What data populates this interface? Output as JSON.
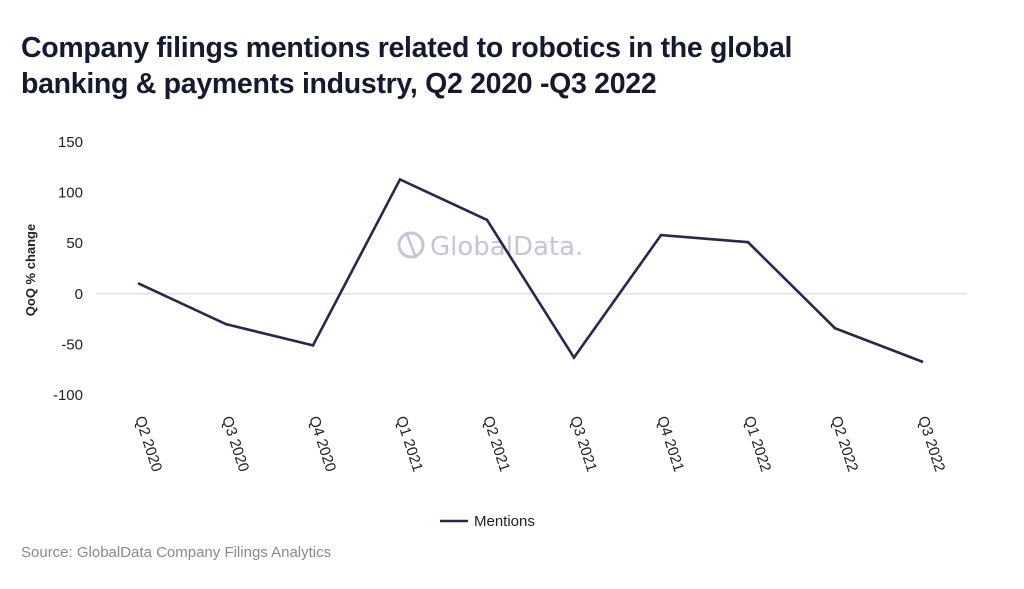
{
  "header": {
    "title": "Company filings mentions related to robotics in the global banking & payments industry, Q2 2020 -Q3 2022"
  },
  "footer": {
    "source": "Source: GlobalData Company Filings Analytics"
  },
  "watermark": {
    "text": "GlobalData.",
    "icon": "globaldata-logo-icon"
  },
  "colors": {
    "line": "#262a4a",
    "zero_line": "#e2e2e2",
    "watermark": "#c9c3d6"
  },
  "chart_data": {
    "type": "line",
    "title": "Company filings mentions related to robotics in the global banking & payments industry, Q2 2020 -Q3 2022",
    "xlabel": "",
    "ylabel": "QoQ % change",
    "categories": [
      "Q2 2020",
      "Q3 2020",
      "Q4 2020",
      "Q1 2021",
      "Q2 2021",
      "Q3 2021",
      "Q4 2021",
      "Q1 2022",
      "Q2 2022",
      "Q3 2022"
    ],
    "series": [
      {
        "name": "Mentions",
        "values": [
          10,
          -30,
          -51,
          113,
          73,
          -63,
          58,
          51,
          -34,
          -67
        ]
      }
    ],
    "ylim": [
      -100,
      150
    ],
    "yticks": [
      150,
      100,
      50,
      0,
      -50,
      -100
    ],
    "grid": "zero-line only",
    "legend": "bottom-center"
  }
}
